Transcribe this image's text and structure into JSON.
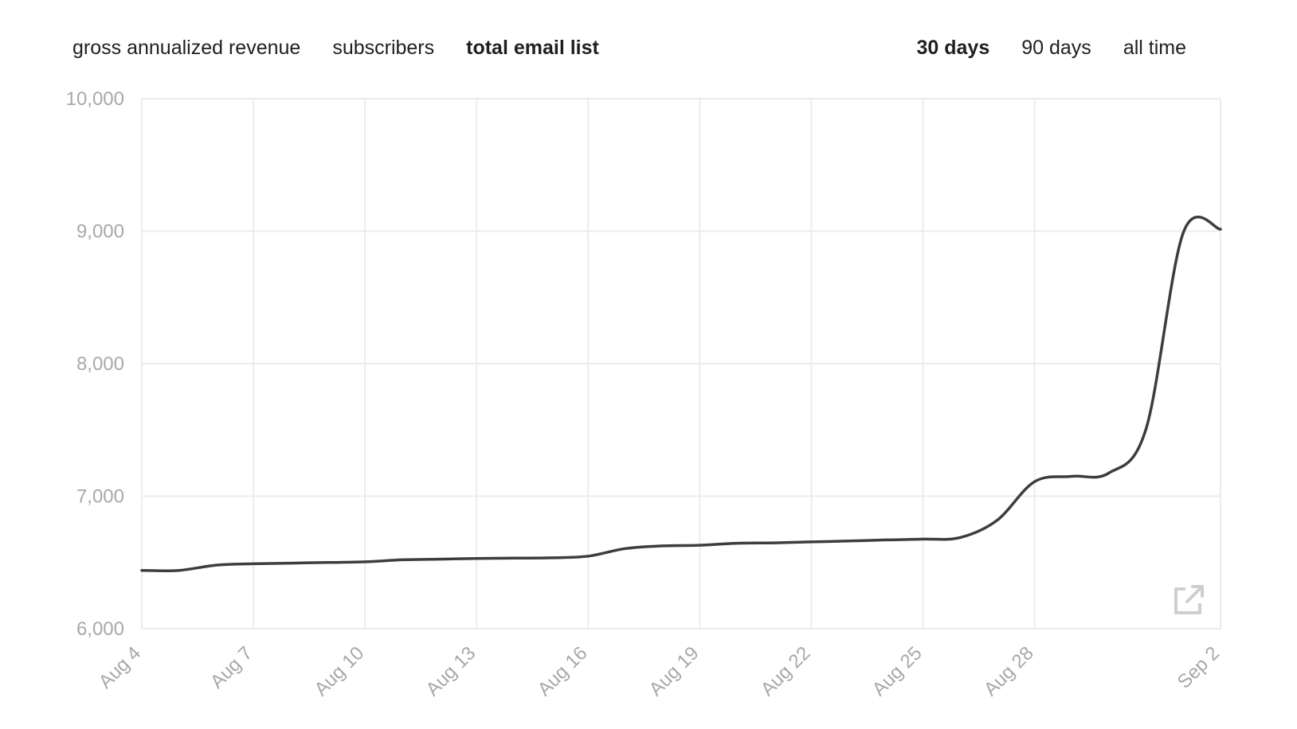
{
  "metric_tabs": [
    {
      "label": "gross annualized revenue",
      "active": false
    },
    {
      "label": "subscribers",
      "active": false
    },
    {
      "label": "total email list",
      "active": true
    }
  ],
  "range_tabs": [
    {
      "label": "30 days",
      "active": true
    },
    {
      "label": "90 days",
      "active": false
    },
    {
      "label": "all time",
      "active": false
    }
  ],
  "colors": {
    "line": "#3d3d3d",
    "grid": "#ececec",
    "tick": "#a8a8a8",
    "icon": "#cfcfcf"
  },
  "icons": {
    "external_link": "external-link-icon"
  },
  "chart_data": {
    "type": "line",
    "title": "",
    "xlabel": "",
    "ylabel": "",
    "ylim": [
      6000,
      10000
    ],
    "yticks": [
      6000,
      7000,
      8000,
      9000,
      10000
    ],
    "ytick_labels": [
      "6,000",
      "7,000",
      "8,000",
      "9,000",
      "10,000"
    ],
    "xlim": [
      "Aug 4",
      "Sep 2"
    ],
    "xtick_labels": [
      "Aug 4",
      "Aug 7",
      "Aug 10",
      "Aug 13",
      "Aug 16",
      "Aug 19",
      "Aug 22",
      "Aug 25",
      "Aug 28",
      "Sep 2"
    ],
    "xtick_positions": [
      "Aug 4",
      "Aug 7",
      "Aug 10",
      "Aug 13",
      "Aug 16",
      "Aug 19",
      "Aug 22",
      "Aug 25",
      "Aug 28",
      "Sep 2"
    ],
    "grid": true,
    "legend": "none",
    "x": [
      "Aug 4",
      "Aug 5",
      "Aug 6",
      "Aug 7",
      "Aug 8",
      "Aug 9",
      "Aug 10",
      "Aug 11",
      "Aug 12",
      "Aug 13",
      "Aug 14",
      "Aug 15",
      "Aug 16",
      "Aug 17",
      "Aug 18",
      "Aug 19",
      "Aug 20",
      "Aug 21",
      "Aug 22",
      "Aug 23",
      "Aug 24",
      "Aug 25",
      "Aug 26",
      "Aug 27",
      "Aug 28",
      "Aug 29",
      "Aug 30",
      "Aug 31",
      "Sep 1",
      "Sep 2"
    ],
    "series": [
      {
        "values": [
          6440,
          6440,
          6480,
          6490,
          6495,
          6500,
          6505,
          6520,
          6525,
          6530,
          6533,
          6535,
          6548,
          6605,
          6625,
          6630,
          6645,
          6648,
          6655,
          6662,
          6670,
          6676,
          6688,
          6820,
          7110,
          7150,
          7175,
          7510,
          8990,
          9015
        ]
      }
    ]
  }
}
